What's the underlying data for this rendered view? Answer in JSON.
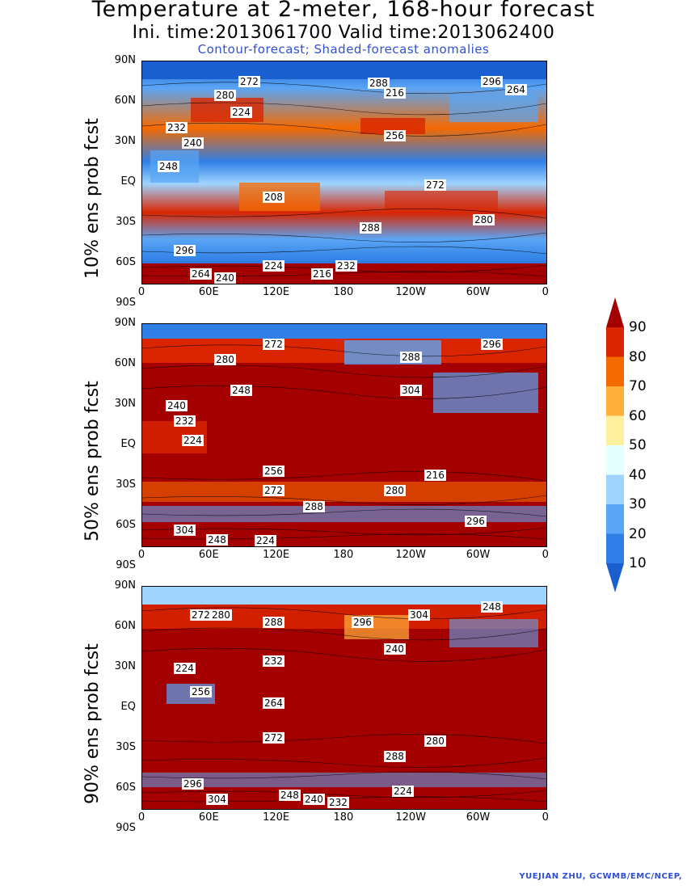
{
  "header": {
    "title": "Temperature at 2-meter, 168-hour forecast",
    "subtitle": "Ini. time:2013061700    Valid time:2013062400",
    "description": "Contour-forecast; Shaded-forecast anomalies"
  },
  "panels": [
    {
      "label": "10% ens prob fcst"
    },
    {
      "label": "50% ens prob fcst"
    },
    {
      "label": "90% ens prob fcst"
    }
  ],
  "axes": {
    "lat_labels": [
      "90N",
      "60N",
      "30N",
      "EQ",
      "30S",
      "60S",
      "90S"
    ],
    "lon_labels": [
      "0",
      "60E",
      "120E",
      "180",
      "120W",
      "60W",
      "0"
    ]
  },
  "colorbar": {
    "labels": [
      "90",
      "80",
      "70",
      "60",
      "50",
      "40",
      "30",
      "20",
      "10"
    ],
    "colors": [
      "#a50000",
      "#d92500",
      "#f56a00",
      "#ffb03a",
      "#fff0a0",
      "#e6ffff",
      "#9fd4ff",
      "#5aa5f5",
      "#2f7fe6",
      "#1a5fd0"
    ]
  },
  "contour_labels": {
    "panel1": [
      "272",
      "280",
      "288",
      "296",
      "264",
      "224",
      "216",
      "232",
      "240",
      "248",
      "256",
      "208"
    ],
    "panel2": [
      "272",
      "280",
      "288",
      "296",
      "304",
      "248",
      "240",
      "232",
      "224",
      "256",
      "216"
    ],
    "panel3": [
      "272",
      "280",
      "288",
      "296",
      "304",
      "248",
      "240",
      "232",
      "224",
      "256",
      "264"
    ]
  },
  "credit": "YUEJIAN ZHU, GCWMB/EMC/NCEP,"
}
